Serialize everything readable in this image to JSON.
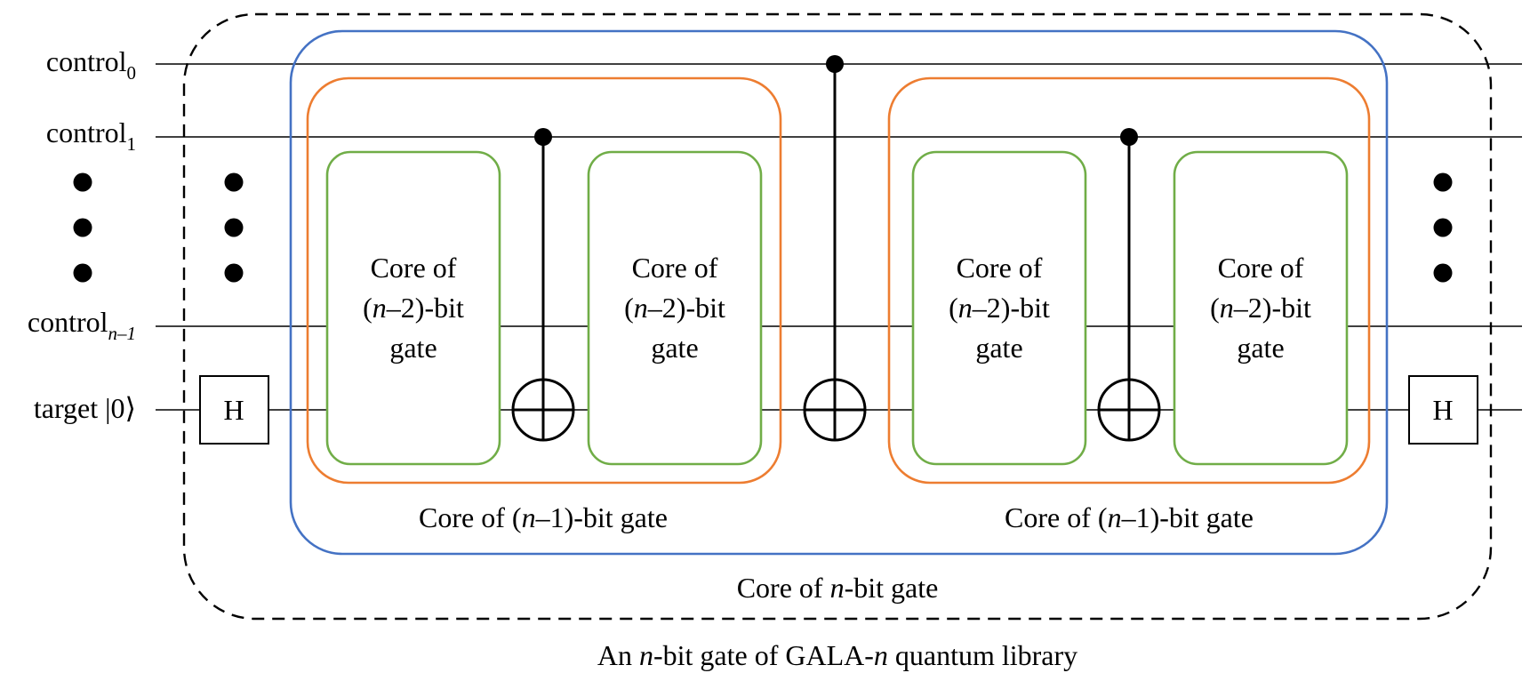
{
  "wires": {
    "control0": {
      "text": "control",
      "sub": "0"
    },
    "control1": {
      "text": "control",
      "sub": "1"
    },
    "control_last": {
      "text": "control",
      "sub": "n–1"
    },
    "target": {
      "text": "target |0⟩"
    }
  },
  "gates": {
    "hadamard_left": "H",
    "hadamard_right": "H"
  },
  "core_n2": {
    "line1": "Core of",
    "line2_open": "(",
    "line2_var": "n",
    "line2_rest": "–2)-bit",
    "line3": "gate"
  },
  "core_n1": {
    "prefix": "Core of (",
    "var": "n",
    "suffix": "–1)-bit gate"
  },
  "core_n": {
    "prefix": "Core of ",
    "var": "n",
    "suffix": "-bit gate"
  },
  "caption": {
    "prefix": "An ",
    "var1": "n",
    "middle": "-bit gate of GALA-",
    "var2": "n",
    "suffix": " quantum library"
  },
  "colors": {
    "blue": "#4472C4",
    "orange": "#ED7D31",
    "green": "#70AD47",
    "line": "#000000"
  }
}
